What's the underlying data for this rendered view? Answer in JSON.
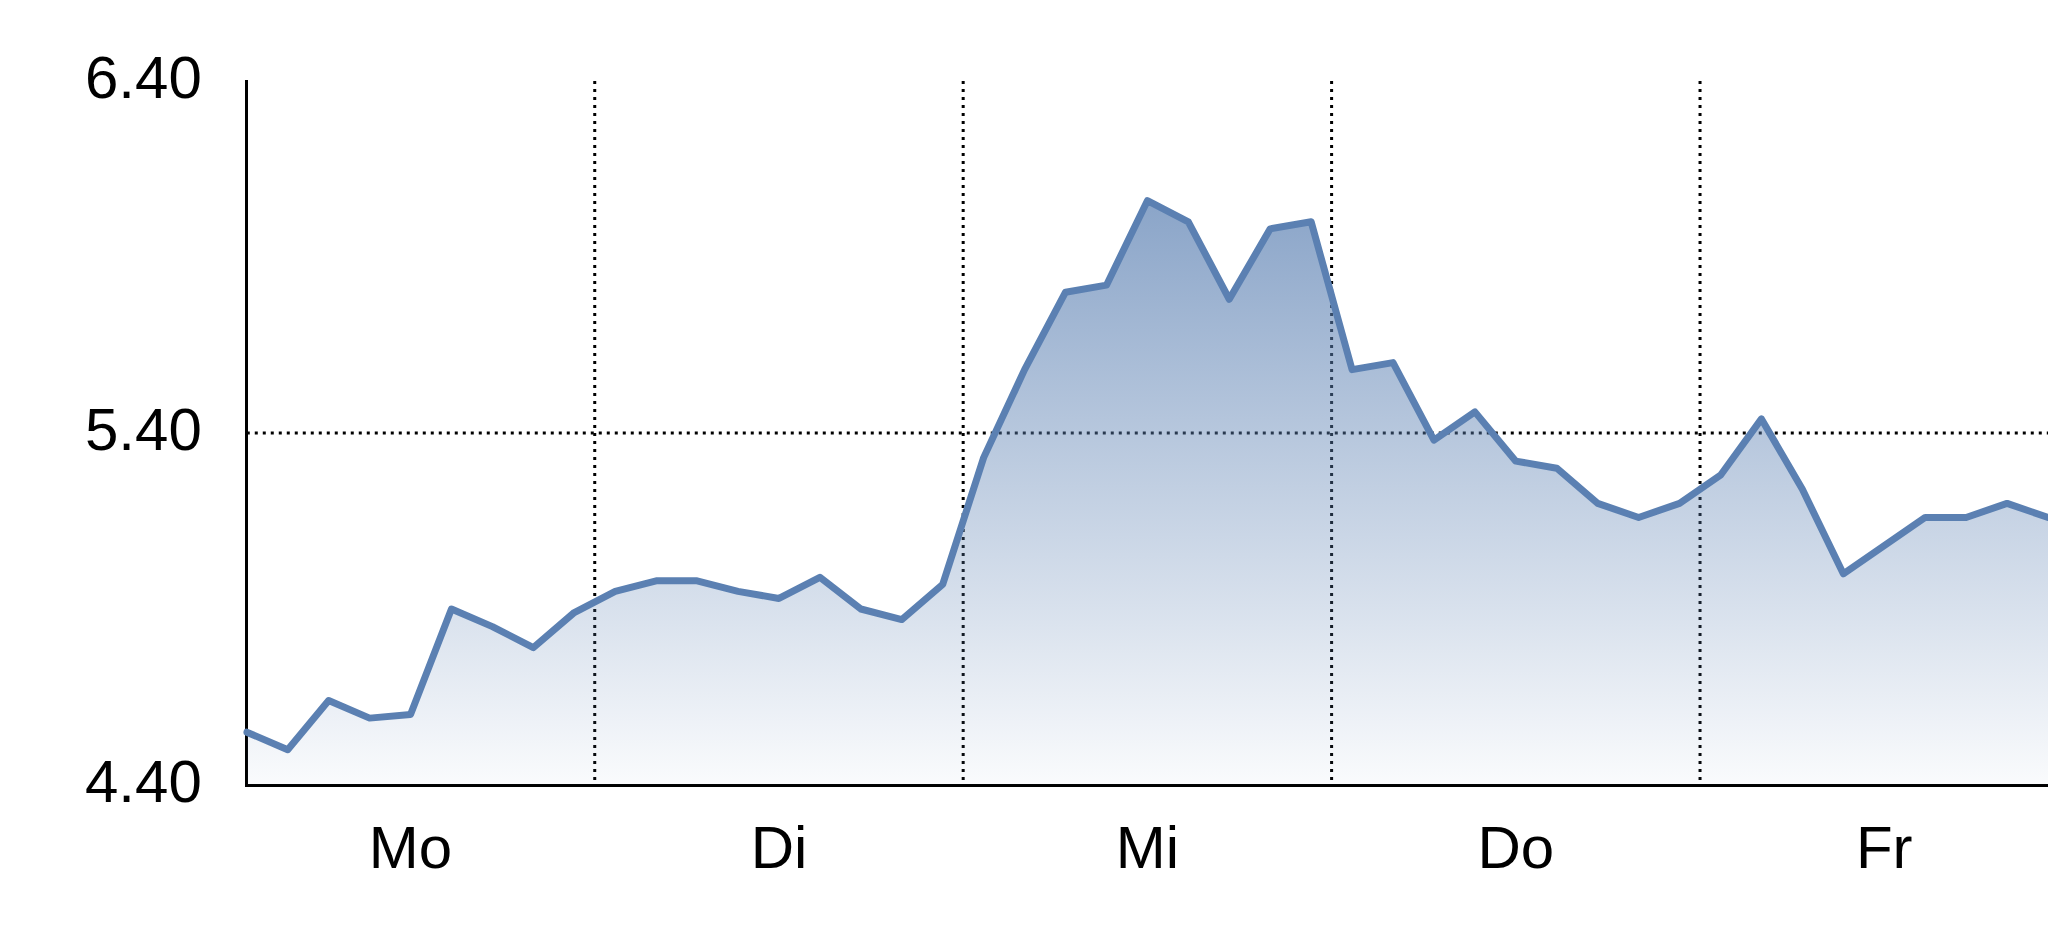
{
  "chart_data": {
    "type": "area",
    "color": "#5b80b2",
    "marker": "none",
    "grid": "x",
    "categories": [
      null,
      null,
      null,
      null,
      "Mo",
      null,
      null,
      null,
      null,
      null,
      null,
      null,
      null,
      "Di",
      null,
      null,
      null,
      null,
      null,
      null,
      null,
      null,
      "Mi",
      null,
      null,
      null,
      null,
      null,
      null,
      null,
      null,
      "Do",
      null,
      null,
      null,
      null,
      null,
      null,
      null,
      null,
      "Fr",
      null,
      null,
      null,
      null
    ],
    "values": [
      4.55,
      4.5,
      4.64,
      4.59,
      4.6,
      4.9,
      4.85,
      4.79,
      4.89,
      4.95,
      4.98,
      4.98,
      4.95,
      4.93,
      4.99,
      4.9,
      4.87,
      4.97,
      5.33,
      5.58,
      5.8,
      5.82,
      6.06,
      6.0,
      5.78,
      5.98,
      6.0,
      5.58,
      5.6,
      5.38,
      5.46,
      5.32,
      5.3,
      5.2,
      5.16,
      5.2,
      5.28,
      5.44,
      5.24,
      5.0,
      5.08,
      5.16,
      5.16,
      5.2,
      5.16
    ],
    "ylim": [
      4.4,
      6.4
    ],
    "yticks": [
      {
        "value": 4.4,
        "label": "4.40"
      },
      {
        "value": 5.4,
        "label": "5.40"
      },
      {
        "value": 6.4,
        "label": "6.40"
      }
    ],
    "ref_lines": [
      {
        "axis": "y",
        "value": 5.4,
        "line_style": "dotted",
        "color": "#000000"
      }
    ]
  }
}
